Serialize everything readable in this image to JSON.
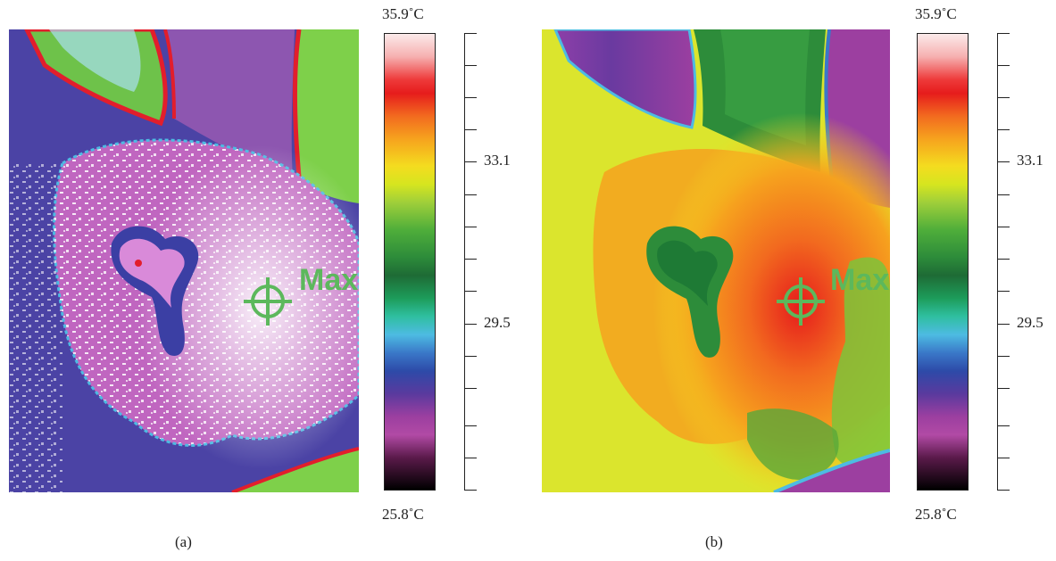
{
  "panels": [
    {
      "id": "a",
      "label": "(a)",
      "marker_label": "Max",
      "colorbar": {
        "max_label": "35.9˚C",
        "min_label": "25.8˚C"
      },
      "scale_labels": [
        "33.1",
        "29.5"
      ]
    },
    {
      "id": "b",
      "label": "(b)",
      "marker_label": "Max",
      "colorbar": {
        "max_label": "35.9˚C",
        "min_label": "25.8˚C"
      },
      "scale_labels": [
        "33.1",
        "29.5"
      ]
    }
  ],
  "colors": {
    "marker": "#5cb85c",
    "hot": "#e61c1c",
    "warm": "#f6a21e",
    "mid": "#f4dc1f",
    "cool": "#2d8c3a",
    "cold": "#2d4aa8",
    "violet": "#9c3fa0"
  }
}
